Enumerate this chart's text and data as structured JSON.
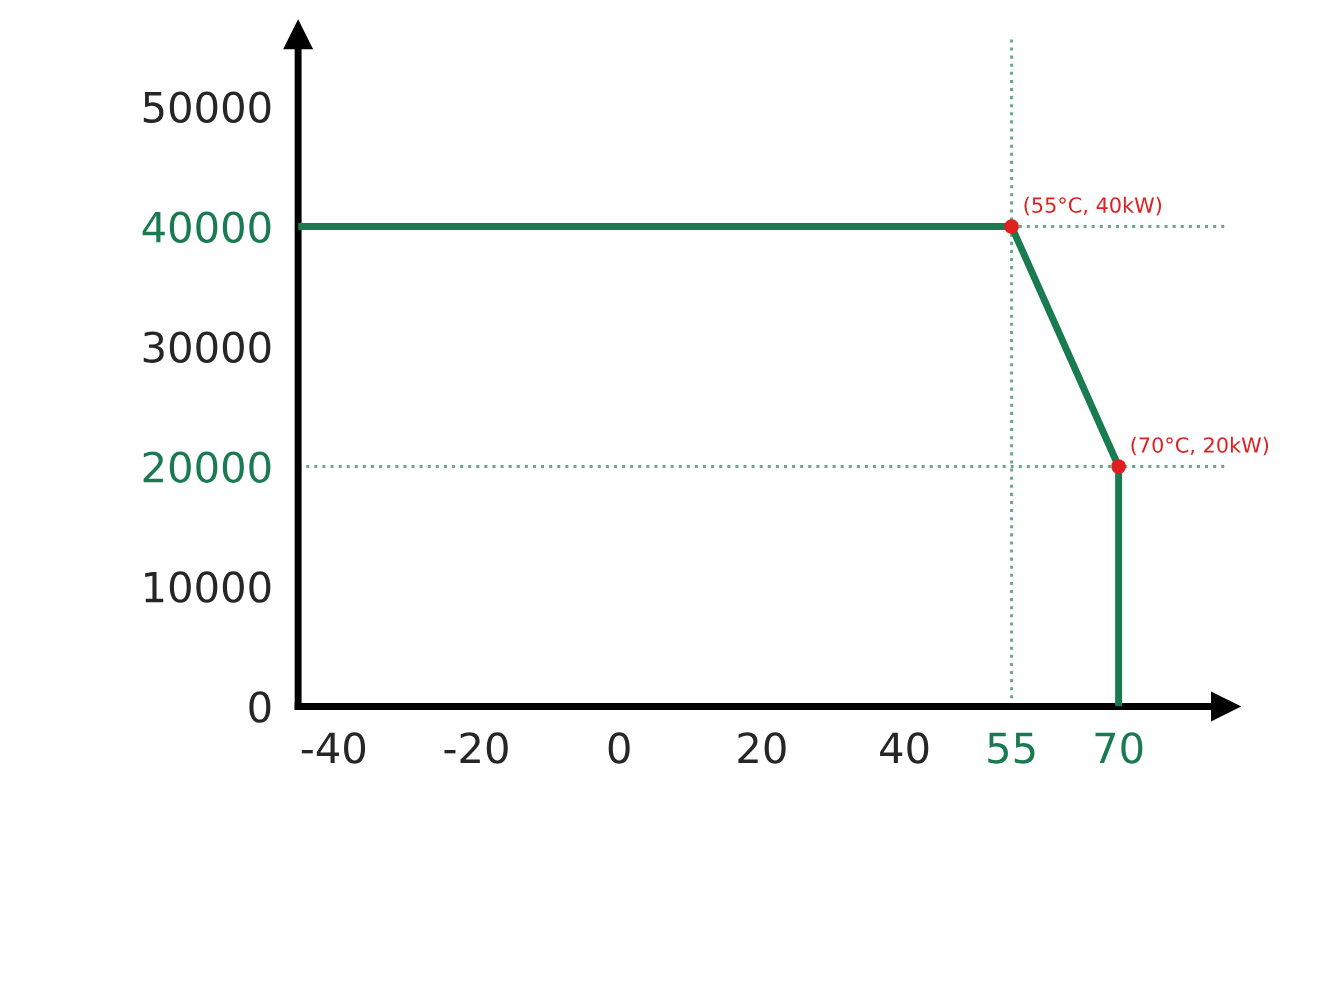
{
  "chart_data": {
    "type": "line",
    "xlim": [
      -45,
      85
    ],
    "ylim": [
      0,
      56000
    ],
    "xticks": [
      -40,
      -20,
      0,
      20,
      40,
      55,
      70
    ],
    "yticks": [
      0,
      10000,
      20000,
      30000,
      40000,
      50000
    ],
    "grid": false,
    "line_style": "solid",
    "series": [
      {
        "color": "#1a7a50",
        "marker": "none",
        "x": [
          -45,
          55,
          70,
          70
        ],
        "values": [
          40000,
          40000,
          20000,
          0
        ]
      },
      {
        "type": "scatter",
        "marker": "circle",
        "color": "#e02020",
        "x": [
          55,
          70
        ],
        "values": [
          40000,
          20000
        ]
      }
    ],
    "ref_lines": [
      {
        "axis": "y",
        "value": 40000,
        "color": "#6aaa8a",
        "line_style": "dotted"
      },
      {
        "axis": "y",
        "value": 20000,
        "color": "#6aaa8a",
        "line_style": "dotted"
      },
      {
        "axis": "x",
        "value": 55,
        "color": "#6aaa8a",
        "line_style": "dotted"
      }
    ],
    "annotations": [
      {
        "text": "(55°C, 40kW)",
        "x": 55,
        "y": 40000
      },
      {
        "text": "(70°C, 20kW)",
        "x": 70,
        "y": 20000
      }
    ]
  }
}
